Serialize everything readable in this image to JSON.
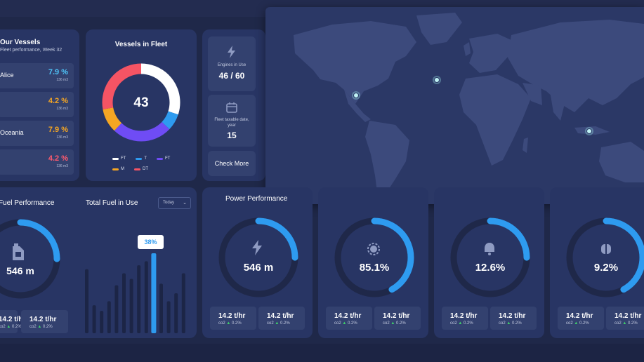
{
  "vessels": {
    "title": "Our Vessels",
    "subtitle": "Fleet performance, Week 32",
    "items": [
      {
        "name": "Alice",
        "pct": "7.9 %",
        "vol": "136 m3",
        "color": "#4fc3f7"
      },
      {
        "name": "",
        "pct": "4.2 %",
        "vol": "136 m3",
        "color": "#f5a623"
      },
      {
        "name": "Oceania",
        "pct": "7.9 %",
        "vol": "136 m3",
        "color": "#f5a623"
      },
      {
        "name": "",
        "pct": "4.2 %",
        "vol": "136 m3",
        "color": "#ff5a6e"
      }
    ]
  },
  "fleet": {
    "title": "Vessels in Fleet",
    "total": "43",
    "legend": [
      {
        "label": "FT",
        "color": "#ffffff"
      },
      {
        "label": "T",
        "color": "#2e9bf0"
      },
      {
        "label": "FT",
        "color": "#6f4cf5"
      },
      {
        "label": "M",
        "color": "#f5a623"
      },
      {
        "label": "DT",
        "color": "#f55464"
      }
    ],
    "donut_fractions": [
      0.3,
      0.07,
      0.25,
      0.1,
      0.28
    ]
  },
  "metrics": {
    "engines": {
      "label": "Engines in Use",
      "value": "46 / 60"
    },
    "fleet_taxable": {
      "label": "Fleet taxable date, year",
      "value": "15"
    },
    "check_more": "Check More"
  },
  "fuel": {
    "title": "Fuel Performance",
    "value": "546 m",
    "progress": 0.25,
    "stats": [
      {
        "value": "14.2 t/hr",
        "sub": "co2",
        "delta": "0.2%"
      },
      {
        "value": "14.2 t/hr",
        "sub": "co2",
        "delta": "0.2%"
      }
    ]
  },
  "total_fuel": {
    "title": "Total Fuel in Use",
    "dropdown": "Today",
    "tooltip": "38%",
    "bars": [
      0.8,
      0.35,
      0.28,
      0.4,
      0.6,
      0.75,
      0.68,
      0.85,
      0.9,
      1.0,
      0.62,
      0.4,
      0.5,
      0.75
    ]
  },
  "power": [
    {
      "title": "Power Performance",
      "value": "546 m",
      "progress": 0.25,
      "icon": "lightning-icon"
    },
    {
      "title": "",
      "value": "85.1%",
      "progress": 0.42,
      "icon": "engine-icon"
    },
    {
      "title": "",
      "value": "12.6%",
      "progress": 0.25,
      "icon": "bell-icon"
    },
    {
      "title": "",
      "value": "9.2%",
      "progress": 0.42,
      "icon": "pump-icon"
    }
  ],
  "power_stats": {
    "value": "14.2 t/hr",
    "sub": "co2",
    "delta": "0.2%"
  }
}
